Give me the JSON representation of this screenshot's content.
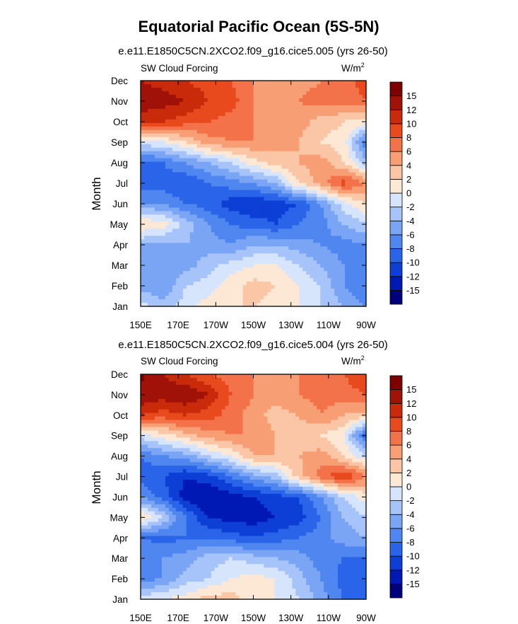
{
  "figure_title": "Equatorial Pacific Ocean (5S-5N)",
  "chart_data": [
    {
      "type": "heatmap",
      "title": "e.e11.E1850C5CN.2XCO2.f09_g16.cice5.005 (yrs 26-50)",
      "left_label": "SW Cloud Forcing",
      "units_base": "W/m",
      "units_exp": "2",
      "ylabel": "Month",
      "xlabel": "",
      "x_ticks": [
        "150E",
        "170E",
        "170W",
        "150W",
        "130W",
        "110W",
        "90W"
      ],
      "y_ticks": [
        "Jan",
        "Feb",
        "Mar",
        "Apr",
        "May",
        "Jun",
        "Jul",
        "Aug",
        "Sep",
        "Oct",
        "Nov",
        "Dec"
      ],
      "x_range": [
        "150E",
        "90W"
      ],
      "levels": [
        -15,
        -12,
        -10,
        -8,
        -6,
        -4,
        -2,
        0,
        2,
        4,
        6,
        8,
        10,
        12,
        15
      ],
      "level_labels": [
        "15",
        "12",
        "10",
        "8",
        "6",
        "4",
        "2",
        "0",
        "-2",
        "-4",
        "-6",
        "-8",
        "-10",
        "-12",
        "-15"
      ],
      "colors": [
        "#00007f",
        "#0019b5",
        "#0d3fd6",
        "#2a64e8",
        "#4f86f0",
        "#7aa5f5",
        "#a7c4fa",
        "#d6e5fc",
        "#fde8d6",
        "#fbc6a6",
        "#f89e75",
        "#f3724a",
        "#e84a1e",
        "#c82a0a",
        "#a01207",
        "#7d0000"
      ],
      "grid": "x: 150E,170E,170W,150W,130W,110W,90W; y: Jan..Dec",
      "values": [
        [
          -1,
          -3,
          -1,
          1,
          2,
          2,
          1,
          0,
          -2,
          -4,
          -6
        ],
        [
          -5,
          -6,
          -2,
          -1,
          1,
          3,
          2,
          0,
          -2,
          -6,
          -8
        ],
        [
          -5,
          -5,
          -5,
          -3,
          -1,
          0,
          0,
          -2,
          -4,
          -6,
          -8
        ],
        [
          -4,
          -5,
          -4,
          -5,
          -6,
          -4,
          -4,
          -5,
          -6,
          -7,
          -6
        ],
        [
          2,
          1,
          -3,
          -6,
          -8,
          -9,
          -10,
          -8,
          -7,
          -4,
          -2
        ],
        [
          -6,
          -6,
          -8,
          -9,
          -11,
          -12,
          -11,
          -10,
          -6,
          -1,
          2
        ],
        [
          -9,
          -9,
          -10,
          -8,
          -7,
          -6,
          -4,
          2,
          5,
          9,
          6
        ],
        [
          -9,
          -8,
          -6,
          -4,
          -2,
          1,
          3,
          4,
          5,
          2,
          -3
        ],
        [
          -1,
          0,
          2,
          5,
          6,
          6,
          5,
          4,
          2,
          1,
          -8
        ],
        [
          10,
          10,
          9,
          8,
          7,
          6,
          5,
          5,
          3,
          2,
          1
        ],
        [
          14,
          13,
          12,
          10,
          9,
          6,
          5,
          6,
          7,
          7,
          8
        ],
        [
          12,
          11,
          10,
          9,
          8,
          6,
          5,
          5,
          6,
          7,
          9
        ]
      ]
    },
    {
      "type": "heatmap",
      "title": "e.e11.E1850C5CN.2XCO2.f09_g16.cice5.004 (yrs 26-50)",
      "left_label": "SW Cloud Forcing",
      "units_base": "W/m",
      "units_exp": "2",
      "ylabel": "Month",
      "xlabel": "",
      "x_ticks": [
        "150E",
        "170E",
        "170W",
        "150W",
        "130W",
        "110W",
        "90W"
      ],
      "y_ticks": [
        "Jan",
        "Feb",
        "Mar",
        "Apr",
        "May",
        "Jun",
        "Jul",
        "Aug",
        "Sep",
        "Oct",
        "Nov",
        "Dec"
      ],
      "x_range": [
        "150E",
        "90W"
      ],
      "levels": [
        -15,
        -12,
        -10,
        -8,
        -6,
        -4,
        -2,
        0,
        2,
        4,
        6,
        8,
        10,
        12,
        15
      ],
      "level_labels": [
        "15",
        "12",
        "10",
        "8",
        "6",
        "4",
        "2",
        "0",
        "-2",
        "-4",
        "-6",
        "-8",
        "-10",
        "-12",
        "-15"
      ],
      "colors": [
        "#00007f",
        "#0019b5",
        "#0d3fd6",
        "#2a64e8",
        "#4f86f0",
        "#7aa5f5",
        "#a7c4fa",
        "#d6e5fc",
        "#fde8d6",
        "#fbc6a6",
        "#f89e75",
        "#f3724a",
        "#e84a1e",
        "#c82a0a",
        "#a01207",
        "#7d0000"
      ],
      "grid": "x: 150E,170E,170W,150W,130W,110W,90W; y: Jan..Dec",
      "values": [
        [
          -1,
          0,
          1,
          3,
          3,
          1,
          0,
          -2,
          -5,
          -8,
          -8
        ],
        [
          -7,
          -6,
          -3,
          -2,
          0,
          1,
          0,
          -3,
          -6,
          -9,
          -9
        ],
        [
          -6,
          -6,
          -5,
          -3,
          -2,
          -3,
          -4,
          -5,
          -7,
          -8,
          -8
        ],
        [
          -8,
          -9,
          -8,
          -8,
          -9,
          -10,
          -9,
          -8,
          -7,
          -5,
          -4
        ],
        [
          2,
          -2,
          -8,
          -12,
          -13,
          -13,
          -12,
          -11,
          -8,
          -4,
          -2
        ],
        [
          -6,
          -9,
          -13,
          -14,
          -13,
          -12,
          -11,
          -10,
          -6,
          -2,
          1
        ],
        [
          -9,
          -10,
          -12,
          -11,
          -8,
          -5,
          -3,
          3,
          7,
          10,
          6
        ],
        [
          -8,
          -6,
          -5,
          -2,
          0,
          4,
          4,
          4,
          5,
          2,
          -2
        ],
        [
          -1,
          1,
          3,
          5,
          6,
          6,
          4,
          3,
          2,
          0,
          -9
        ],
        [
          10,
          9,
          10,
          9,
          7,
          5,
          3,
          4,
          6,
          4,
          3
        ],
        [
          14,
          13,
          14,
          12,
          8,
          6,
          5,
          6,
          7,
          7,
          8
        ],
        [
          16,
          12,
          10,
          8,
          7,
          6,
          5,
          6,
          7,
          8,
          10
        ]
      ]
    }
  ]
}
